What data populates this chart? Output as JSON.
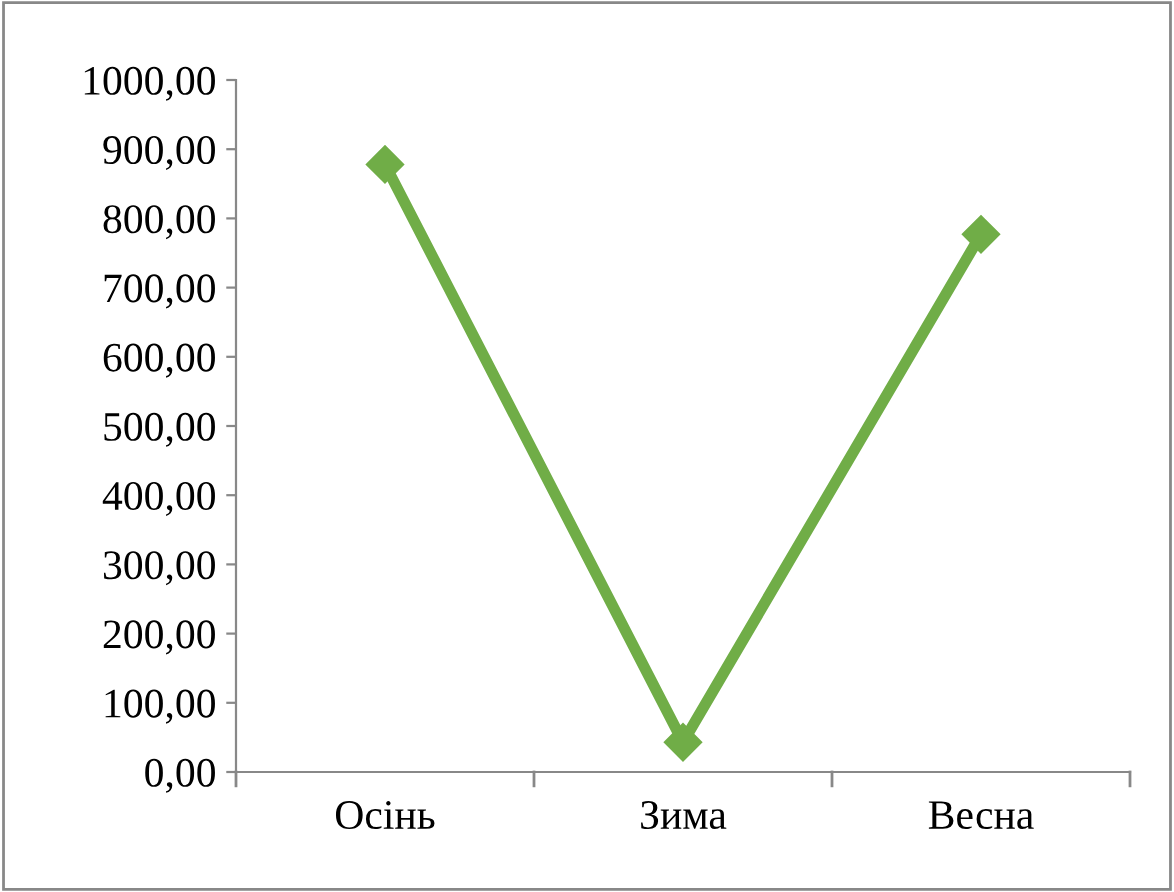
{
  "chart_data": {
    "type": "line",
    "categories": [
      "Осінь",
      "Зима",
      "Весна"
    ],
    "series": [
      {
        "color": "#70ad47",
        "values": [
          878,
          43,
          777
        ]
      }
    ],
    "ylim": [
      0,
      1000
    ],
    "yticks": [
      {
        "value": 0,
        "label": "0,00"
      },
      {
        "value": 100,
        "label": "100,00"
      },
      {
        "value": 200,
        "label": "200,00"
      },
      {
        "value": 300,
        "label": "300,00"
      },
      {
        "value": 400,
        "label": "400,00"
      },
      {
        "value": 500,
        "label": "500,00"
      },
      {
        "value": 600,
        "label": "600,00"
      },
      {
        "value": 700,
        "label": "700,00"
      },
      {
        "value": 800,
        "label": "800,00"
      },
      {
        "value": 900,
        "label": "900,00"
      },
      {
        "value": 1000,
        "label": "1000,00"
      }
    ],
    "grid": false,
    "legend": false,
    "marker": "diamond",
    "line_style": "solid"
  }
}
